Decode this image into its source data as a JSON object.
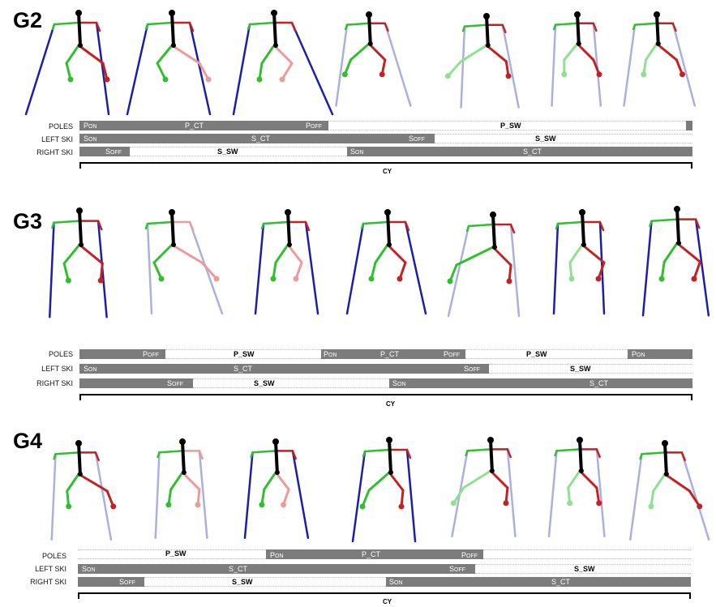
{
  "groups": [
    {
      "label": "G2",
      "rows": {
        "poles": "POLES",
        "left": "LEFT SKI",
        "right": "RIGHT SKI"
      },
      "poles_segments": [
        {
          "main": "P",
          "sub": "ON"
        },
        {
          "main": "P_CT",
          "sub": ""
        },
        {
          "main": "P",
          "sub": "OFF"
        },
        {
          "main": "P_SW",
          "sub": ""
        }
      ],
      "left_segments": [
        {
          "main": "S",
          "sub": "ON"
        },
        {
          "main": "S_CT",
          "sub": ""
        },
        {
          "main": "S",
          "sub": "OFF"
        },
        {
          "main": "S_SW",
          "sub": ""
        }
      ],
      "right_segments": [
        {
          "main": "S",
          "sub": "OFF"
        },
        {
          "main": "S_SW",
          "sub": ""
        },
        {
          "main": "S",
          "sub": "ON"
        },
        {
          "main": "S_CT",
          "sub": ""
        }
      ],
      "cycle": "CY"
    },
    {
      "label": "G3",
      "rows": {
        "poles": "POLES",
        "left": "LEFT SKI",
        "right": "RIGHT SKI"
      },
      "poles_segments": [
        {
          "main": "P",
          "sub": "OFF"
        },
        {
          "main": "P_SW",
          "sub": ""
        },
        {
          "main": "P",
          "sub": "ON"
        },
        {
          "main": "P_CT",
          "sub": ""
        },
        {
          "main": "P",
          "sub": "OFF"
        },
        {
          "main": "P_SW",
          "sub": ""
        },
        {
          "main": "P",
          "sub": "ON"
        }
      ],
      "left_segments": [
        {
          "main": "S",
          "sub": "ON"
        },
        {
          "main": "S_CT",
          "sub": ""
        },
        {
          "main": "S",
          "sub": "OFF"
        },
        {
          "main": "S_SW",
          "sub": ""
        }
      ],
      "right_segments": [
        {
          "main": "S",
          "sub": "OFF"
        },
        {
          "main": "S_SW",
          "sub": ""
        },
        {
          "main": "S",
          "sub": "ON"
        },
        {
          "main": "S_CT",
          "sub": ""
        }
      ],
      "cycle": "CY"
    },
    {
      "label": "G4",
      "rows": {
        "poles": "POLES",
        "left": "LEFT SKI",
        "right": "RIGHT SKI"
      },
      "poles_segments": [
        {
          "main": "P_SW",
          "sub": ""
        },
        {
          "main": "P",
          "sub": "ON"
        },
        {
          "main": "P_CT",
          "sub": ""
        },
        {
          "main": "P",
          "sub": "OFF"
        }
      ],
      "left_segments": [
        {
          "main": "S",
          "sub": "ON"
        },
        {
          "main": "S_CT",
          "sub": ""
        },
        {
          "main": "S",
          "sub": "OFF"
        },
        {
          "main": "S_SW",
          "sub": ""
        }
      ],
      "right_segments": [
        {
          "main": "S",
          "sub": "OFF"
        },
        {
          "main": "S_SW",
          "sub": ""
        },
        {
          "main": "S",
          "sub": "ON"
        },
        {
          "main": "S_CT",
          "sub": ""
        }
      ],
      "cycle": "CY"
    }
  ],
  "colors": {
    "left_limb": "#2fbf2f",
    "left_limb_light": "#8fe08f",
    "right_limb": "#c42222",
    "right_limb_light": "#ee9a9a",
    "trunk": "#000000",
    "pole_contact": "#1b1fa8",
    "pole_swing": "#aab0e0",
    "bar_dark": "#7c7c7c"
  }
}
